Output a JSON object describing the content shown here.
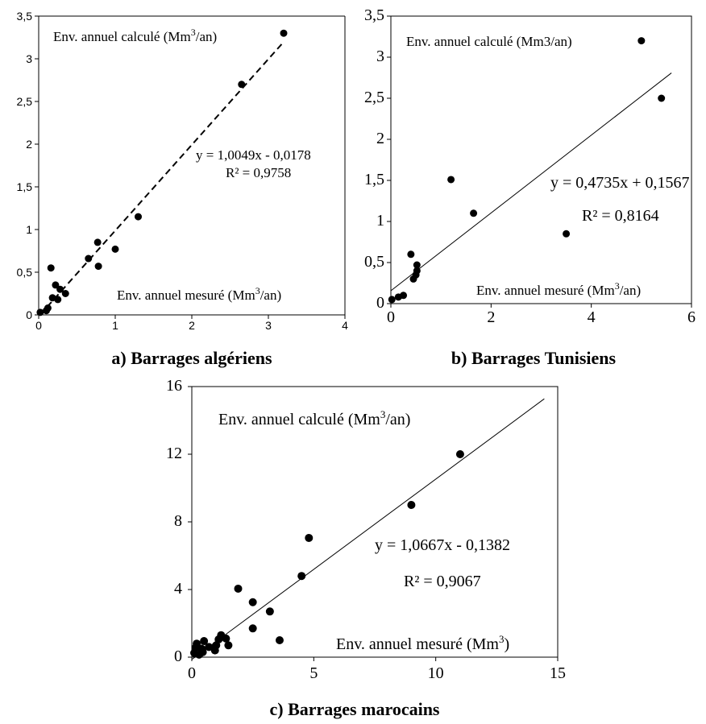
{
  "chart_data": [
    {
      "type": "scatter",
      "caption": "a) Barrages algériens",
      "xlim": [
        0,
        4
      ],
      "ylim": [
        0,
        3.5
      ],
      "x_ticks": [
        "0",
        "1",
        "2",
        "3",
        "4"
      ],
      "y_ticks": [
        "0",
        "0,5",
        "1",
        "1,5",
        "2",
        "2,5",
        "3",
        "3,5"
      ],
      "ylabel_text": "Env. annuel calculé (Mm",
      "ylabel_sup": "3",
      "ylabel_end": "/an)",
      "xlabel_text": "Env. annuel mesuré (Mm",
      "xlabel_sup": "3",
      "xlabel_end": "/an)",
      "equation": "y = 1,0049x - 0,0178",
      "r2_label": "R² = 0,9758",
      "trendline": {
        "style": "dashed",
        "slope": 1.0049,
        "intercept": -0.0178,
        "x_range": [
          0.02,
          3.2
        ]
      },
      "points": [
        {
          "x": 0.02,
          "y": 0.03
        },
        {
          "x": 0.1,
          "y": 0.05
        },
        {
          "x": 0.12,
          "y": 0.08
        },
        {
          "x": 0.16,
          "y": 0.55
        },
        {
          "x": 0.18,
          "y": 0.2
        },
        {
          "x": 0.22,
          "y": 0.35
        },
        {
          "x": 0.25,
          "y": 0.18
        },
        {
          "x": 0.28,
          "y": 0.3
        },
        {
          "x": 0.35,
          "y": 0.25
        },
        {
          "x": 0.65,
          "y": 0.66
        },
        {
          "x": 0.77,
          "y": 0.85
        },
        {
          "x": 0.78,
          "y": 0.57
        },
        {
          "x": 1.0,
          "y": 0.77
        },
        {
          "x": 1.3,
          "y": 1.15
        },
        {
          "x": 2.65,
          "y": 2.7
        },
        {
          "x": 3.2,
          "y": 3.3
        }
      ]
    },
    {
      "type": "scatter",
      "caption": "b) Barrages Tunisiens",
      "xlim": [
        0,
        6
      ],
      "ylim": [
        0,
        3.5
      ],
      "x_ticks": [
        "0",
        "2",
        "4",
        "6"
      ],
      "y_ticks": [
        "0",
        "0,5",
        "1",
        "1,5",
        "2",
        "2,5",
        "3",
        "3,5"
      ],
      "ylabel_text": "Env. annuel calculé (Mm3/an)",
      "ylabel_sup": "",
      "ylabel_end": "",
      "xlabel_text": "Env. annuel mesuré (Mm",
      "xlabel_sup": "3",
      "xlabel_end": "/an)",
      "equation": "y = 0,4735x + 0,1567",
      "r2_label": "R² = 0,8164",
      "trendline": {
        "style": "solid",
        "slope": 0.4735,
        "intercept": 0.1567,
        "x_range": [
          0,
          5.6
        ]
      },
      "points": [
        {
          "x": 0.02,
          "y": 0.05
        },
        {
          "x": 0.15,
          "y": 0.08
        },
        {
          "x": 0.25,
          "y": 0.1
        },
        {
          "x": 0.4,
          "y": 0.6
        },
        {
          "x": 0.45,
          "y": 0.3
        },
        {
          "x": 0.5,
          "y": 0.35
        },
        {
          "x": 0.52,
          "y": 0.4
        },
        {
          "x": 0.52,
          "y": 0.47
        },
        {
          "x": 1.2,
          "y": 1.51
        },
        {
          "x": 1.65,
          "y": 1.1
        },
        {
          "x": 3.5,
          "y": 0.85
        },
        {
          "x": 5.0,
          "y": 3.2
        },
        {
          "x": 5.4,
          "y": 2.5
        }
      ]
    },
    {
      "type": "scatter",
      "caption": "c) Barrages marocains",
      "xlim": [
        0,
        15
      ],
      "ylim": [
        0,
        16
      ],
      "x_ticks": [
        "0",
        "5",
        "10",
        "15"
      ],
      "y_ticks": [
        "0",
        "4",
        "8",
        "12",
        "16"
      ],
      "ylabel_text": "Env. annuel calculé (Mm",
      "ylabel_sup": "3",
      "ylabel_end": "/an)",
      "xlabel_text": "Env. annuel mesuré (Mm",
      "xlabel_sup": "3",
      "xlabel_end": ")",
      "equation": "y = 1,0667x - 0,1382",
      "r2_label": "R² = 0,9067",
      "trendline": {
        "style": "solid",
        "slope": 1.0667,
        "intercept": -0.1382,
        "x_range": [
          0,
          14.45
        ]
      },
      "points": [
        {
          "x": 0.1,
          "y": 0.25
        },
        {
          "x": 0.15,
          "y": 0.55
        },
        {
          "x": 0.2,
          "y": 0.8
        },
        {
          "x": 0.3,
          "y": 0.15
        },
        {
          "x": 0.4,
          "y": 0.5
        },
        {
          "x": 0.45,
          "y": 0.3
        },
        {
          "x": 0.5,
          "y": 0.95
        },
        {
          "x": 0.7,
          "y": 0.6
        },
        {
          "x": 0.95,
          "y": 0.4
        },
        {
          "x": 1.0,
          "y": 0.7
        },
        {
          "x": 1.1,
          "y": 1.05
        },
        {
          "x": 1.2,
          "y": 1.3
        },
        {
          "x": 1.4,
          "y": 1.1
        },
        {
          "x": 1.5,
          "y": 0.7
        },
        {
          "x": 1.9,
          "y": 4.05
        },
        {
          "x": 2.5,
          "y": 3.25
        },
        {
          "x": 2.5,
          "y": 1.7
        },
        {
          "x": 3.2,
          "y": 2.7
        },
        {
          "x": 3.6,
          "y": 1.0
        },
        {
          "x": 4.5,
          "y": 4.8
        },
        {
          "x": 4.8,
          "y": 7.05
        },
        {
          "x": 9.0,
          "y": 9.0
        },
        {
          "x": 11.0,
          "y": 12.0
        }
      ]
    }
  ]
}
